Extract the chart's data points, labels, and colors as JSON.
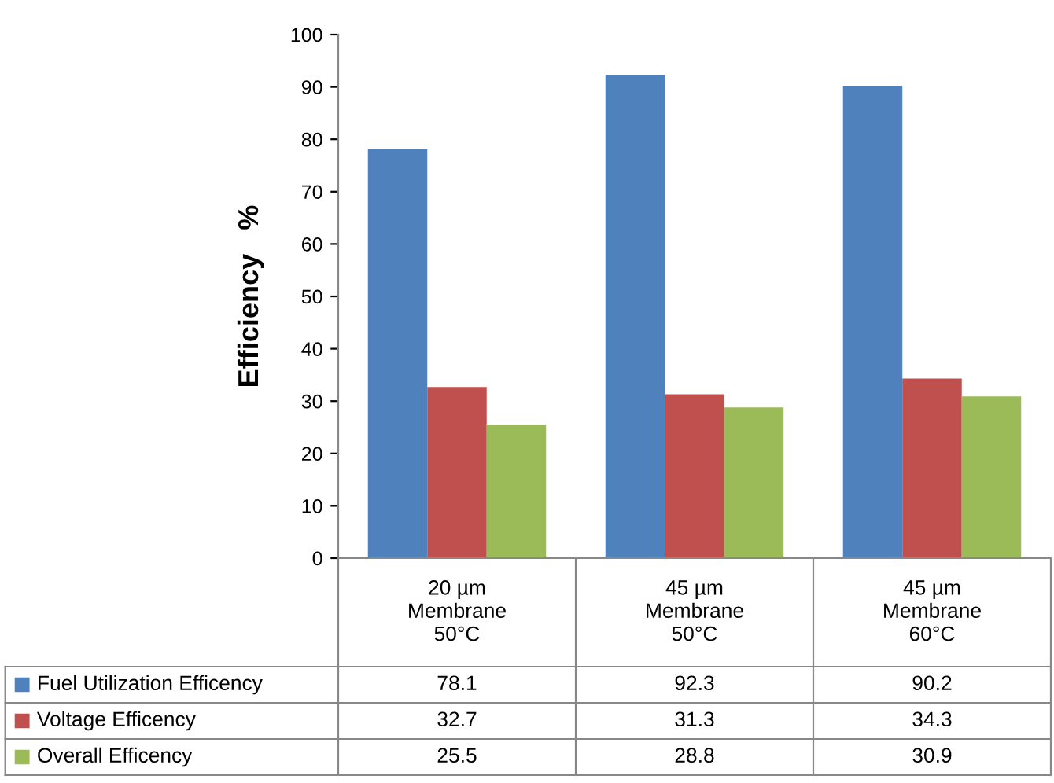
{
  "chart_data": {
    "type": "bar",
    "ylabel": "Efficiency   %",
    "categories": [
      "20 µm\nMembrane\n50°C",
      "45 µm\nMembrane\n50°C",
      "45 µm\nMembrane\n60°C"
    ],
    "series": [
      {
        "name": "Fuel Utilization Efficency",
        "color": "#4f81bd",
        "values": [
          78.1,
          92.3,
          90.2
        ]
      },
      {
        "name": "Voltage Efficency",
        "color": "#c0504d",
        "values": [
          32.7,
          31.3,
          34.3
        ]
      },
      {
        "name": "Overall Efficency",
        "color": "#9bbb59",
        "values": [
          25.5,
          28.8,
          30.9
        ]
      }
    ],
    "ylim": [
      0,
      100
    ],
    "yticks": [
      0,
      10,
      20,
      30,
      40,
      50,
      60,
      70,
      80,
      90,
      100
    ],
    "grid": false,
    "legend": "bottom",
    "data_labels": true
  }
}
